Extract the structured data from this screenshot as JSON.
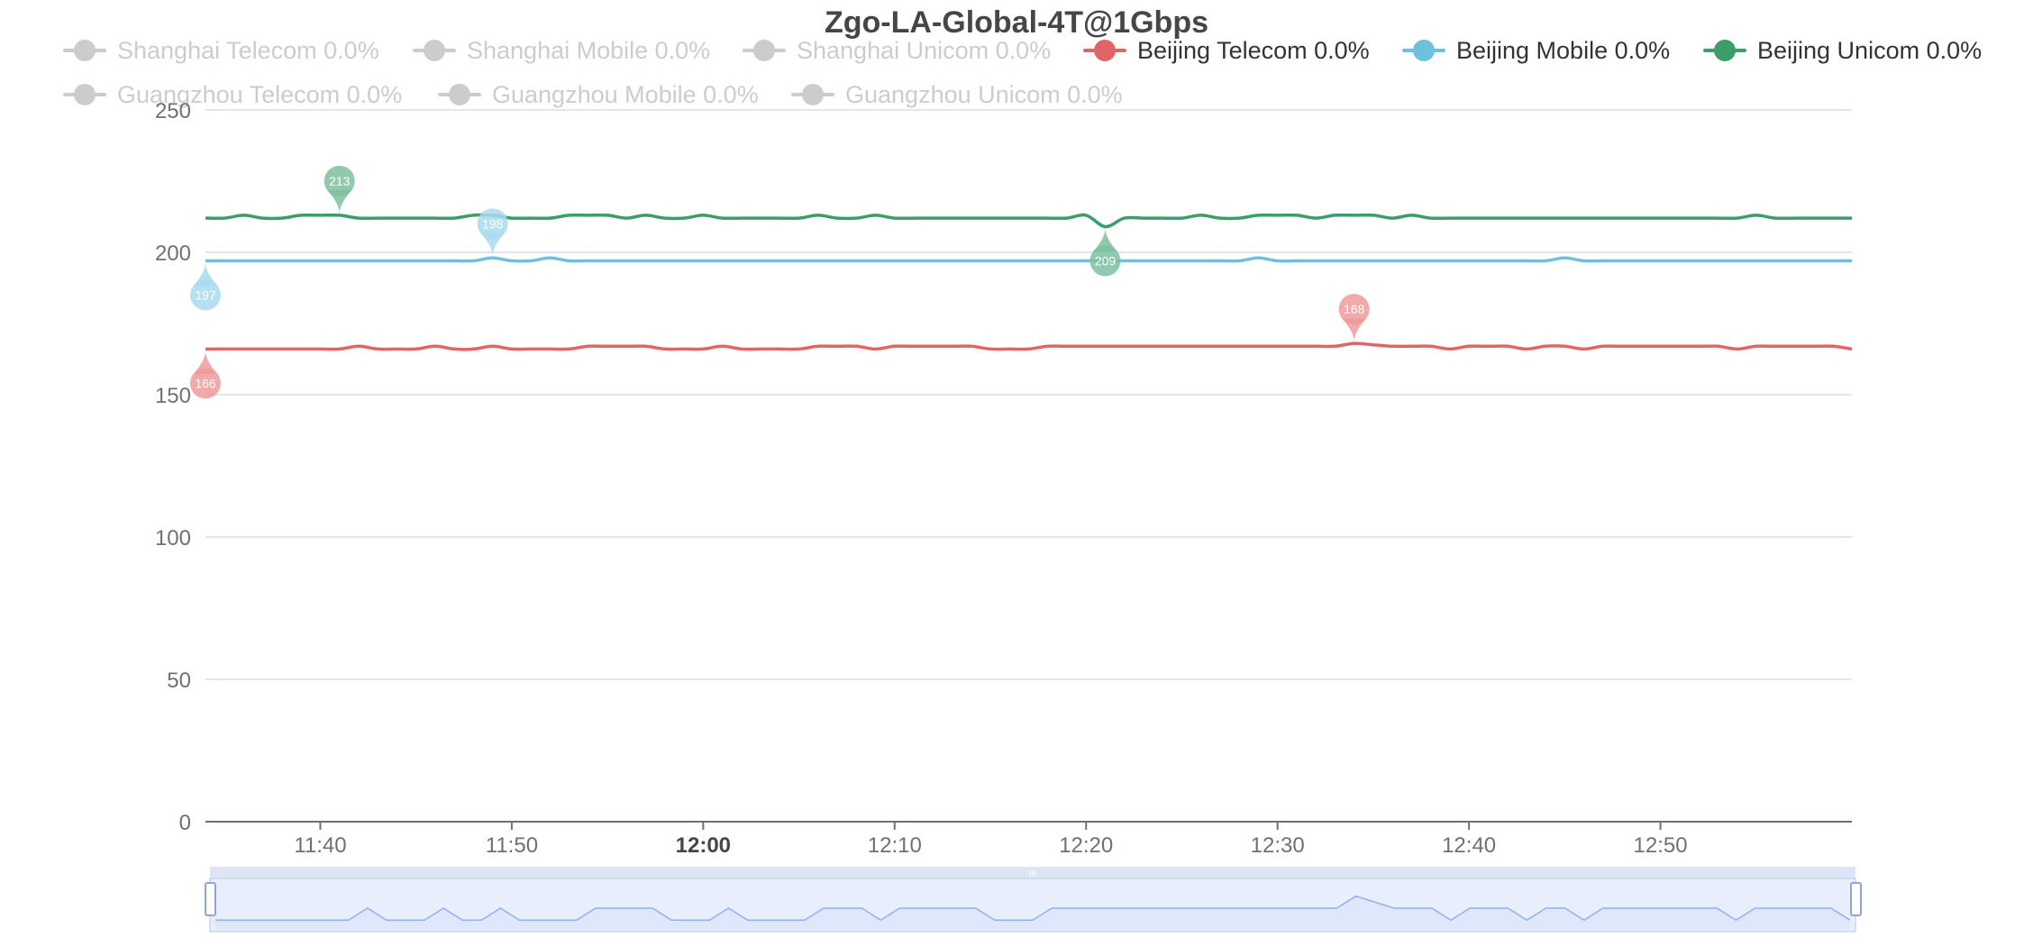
{
  "chart_data": {
    "type": "line",
    "title": "Zgo-LA-Global-4T@1Gbps",
    "xlabel": "",
    "ylabel": "",
    "ylim": [
      0,
      250
    ],
    "yticks": [
      "0",
      "50",
      "100",
      "150",
      "200",
      "250"
    ],
    "xlim": [
      "11:34",
      "13:00"
    ],
    "xticks": [
      {
        "time": "11:40",
        "label": "11:40",
        "bold": false
      },
      {
        "time": "11:50",
        "label": "11:50",
        "bold": false
      },
      {
        "time": "12:00",
        "label": "12:00",
        "bold": true
      },
      {
        "time": "12:10",
        "label": "12:10",
        "bold": false
      },
      {
        "time": "12:20",
        "label": "12:20",
        "bold": false
      },
      {
        "time": "12:30",
        "label": "12:30",
        "bold": false
      },
      {
        "time": "12:40",
        "label": "12:40",
        "bold": false
      },
      {
        "time": "12:50",
        "label": "12:50",
        "bold": false
      }
    ],
    "grid": true,
    "legend_position": "top",
    "series": [
      {
        "name": "Shanghai Telecom",
        "label": "Shanghai Telecom 0.0%",
        "visible": false,
        "color": "#cccccc"
      },
      {
        "name": "Shanghai Mobile",
        "label": "Shanghai Mobile 0.0%",
        "visible": false,
        "color": "#cccccc"
      },
      {
        "name": "Shanghai Unicom",
        "label": "Shanghai Unicom 0.0%",
        "visible": false,
        "color": "#cccccc"
      },
      {
        "name": "Beijing Telecom",
        "label": "Beijing Telecom 0.0%",
        "visible": true,
        "color": "#e06666",
        "pin_color": "#ef9a9a",
        "anchors": [
          [
            "11:34",
            166
          ],
          [
            "11:41",
            166
          ],
          [
            "11:42",
            167
          ],
          [
            "11:43",
            166
          ],
          [
            "11:45",
            166
          ],
          [
            "11:46",
            167
          ],
          [
            "11:47",
            166
          ],
          [
            "11:48",
            166
          ],
          [
            "11:49",
            167
          ],
          [
            "11:50",
            166
          ],
          [
            "11:53",
            166
          ],
          [
            "11:54",
            167
          ],
          [
            "11:57",
            167
          ],
          [
            "11:58",
            166
          ],
          [
            "12:00",
            166
          ],
          [
            "12:01",
            167
          ],
          [
            "12:02",
            166
          ],
          [
            "12:05",
            166
          ],
          [
            "12:06",
            167
          ],
          [
            "12:08",
            167
          ],
          [
            "12:09",
            166
          ],
          [
            "12:10",
            167
          ],
          [
            "12:14",
            167
          ],
          [
            "12:15",
            166
          ],
          [
            "12:17",
            166
          ],
          [
            "12:18",
            167
          ],
          [
            "12:33",
            167
          ],
          [
            "12:34",
            168
          ],
          [
            "12:36",
            167
          ],
          [
            "12:38",
            167
          ],
          [
            "12:39",
            166
          ],
          [
            "12:40",
            167
          ],
          [
            "12:42",
            167
          ],
          [
            "12:43",
            166
          ],
          [
            "12:44",
            167
          ],
          [
            "12:45",
            167
          ],
          [
            "12:46",
            166
          ],
          [
            "12:47",
            167
          ],
          [
            "12:53",
            167
          ],
          [
            "12:54",
            166
          ],
          [
            "12:55",
            167
          ],
          [
            "12:59",
            167
          ],
          [
            "13:00",
            166
          ]
        ],
        "min": {
          "time": "11:34",
          "value": 166,
          "label": "166"
        },
        "max": {
          "time": "12:34",
          "value": 168,
          "label": "168"
        }
      },
      {
        "name": "Beijing Mobile",
        "label": "Beijing Mobile 0.0%",
        "visible": true,
        "color": "#6ec1dd",
        "pin_color": "#a8daf0",
        "anchors": [
          [
            "11:34",
            197
          ],
          [
            "11:48",
            197
          ],
          [
            "11:49",
            198
          ],
          [
            "11:50",
            197
          ],
          [
            "11:51",
            197
          ],
          [
            "11:52",
            198
          ],
          [
            "11:53",
            197
          ],
          [
            "12:28",
            197
          ],
          [
            "12:29",
            198
          ],
          [
            "12:30",
            197
          ],
          [
            "12:44",
            197
          ],
          [
            "12:45",
            198
          ],
          [
            "12:46",
            197
          ],
          [
            "13:00",
            197
          ]
        ],
        "min": {
          "time": "11:34",
          "value": 197,
          "label": "197"
        },
        "max": {
          "time": "11:49",
          "value": 198,
          "label": "198"
        }
      },
      {
        "name": "Beijing Unicom",
        "label": "Beijing Unicom 0.0%",
        "visible": true,
        "color": "#3a9e6b",
        "pin_color": "#7cc09e",
        "anchors": [
          [
            "11:34",
            212
          ],
          [
            "11:35",
            212
          ],
          [
            "11:36",
            213
          ],
          [
            "11:37",
            212
          ],
          [
            "11:38",
            212
          ],
          [
            "11:39",
            213
          ],
          [
            "11:40",
            213
          ],
          [
            "11:41",
            213
          ],
          [
            "11:42",
            212
          ],
          [
            "11:47",
            212
          ],
          [
            "11:48",
            213
          ],
          [
            "11:49",
            213
          ],
          [
            "11:50",
            212
          ],
          [
            "11:52",
            212
          ],
          [
            "11:53",
            213
          ],
          [
            "11:55",
            213
          ],
          [
            "11:56",
            212
          ],
          [
            "11:57",
            213
          ],
          [
            "11:58",
            212
          ],
          [
            "11:59",
            212
          ],
          [
            "12:00",
            213
          ],
          [
            "12:01",
            212
          ],
          [
            "12:05",
            212
          ],
          [
            "12:06",
            213
          ],
          [
            "12:07",
            212
          ],
          [
            "12:08",
            212
          ],
          [
            "12:09",
            213
          ],
          [
            "12:10",
            212
          ],
          [
            "12:19",
            212
          ],
          [
            "12:20",
            213
          ],
          [
            "12:21",
            209
          ],
          [
            "12:22",
            212
          ],
          [
            "12:25",
            212
          ],
          [
            "12:26",
            213
          ],
          [
            "12:27",
            212
          ],
          [
            "12:28",
            212
          ],
          [
            "12:29",
            213
          ],
          [
            "12:31",
            213
          ],
          [
            "12:32",
            212
          ],
          [
            "12:33",
            213
          ],
          [
            "12:35",
            213
          ],
          [
            "12:36",
            212
          ],
          [
            "12:37",
            213
          ],
          [
            "12:38",
            212
          ],
          [
            "12:54",
            212
          ],
          [
            "12:55",
            213
          ],
          [
            "12:56",
            212
          ],
          [
            "13:00",
            212
          ]
        ],
        "min": {
          "time": "12:21",
          "value": 209,
          "label": "209"
        },
        "max": {
          "time": "11:41",
          "value": 213,
          "label": "213"
        }
      },
      {
        "name": "Guangzhou Telecom",
        "label": "Guangzhou Telecom 0.0%",
        "visible": false,
        "color": "#cccccc"
      },
      {
        "name": "Guangzhou Mobile",
        "label": "Guangzhou Mobile 0.0%",
        "visible": false,
        "color": "#cccccc"
      },
      {
        "name": "Guangzhou Unicom",
        "label": "Guangzhou Unicom 0.0%",
        "visible": false,
        "color": "#cccccc"
      }
    ],
    "data_zoom": {
      "start_percent": 0,
      "end_percent": 100,
      "handle_label": "III",
      "fill_color": "#dfe8fb",
      "line_color": "#8fb0f7"
    }
  },
  "colors": {
    "grid": "#e0e6f1",
    "axis_label": "#6e7079",
    "axis_line": "#6e7079",
    "legend_off": "#cccccc",
    "legend_on": "#333333"
  }
}
